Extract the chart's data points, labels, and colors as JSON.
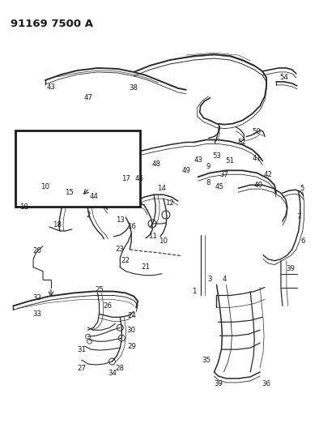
{
  "title": "91169 7500 A",
  "bg_color": "#ffffff",
  "line_color": "#2a2a2a",
  "text_color": "#1a1a1a",
  "label_fontsize": 6.2,
  "title_fontsize": 9.5,
  "figsize": [
    3.94,
    5.33
  ],
  "dpi": 100
}
